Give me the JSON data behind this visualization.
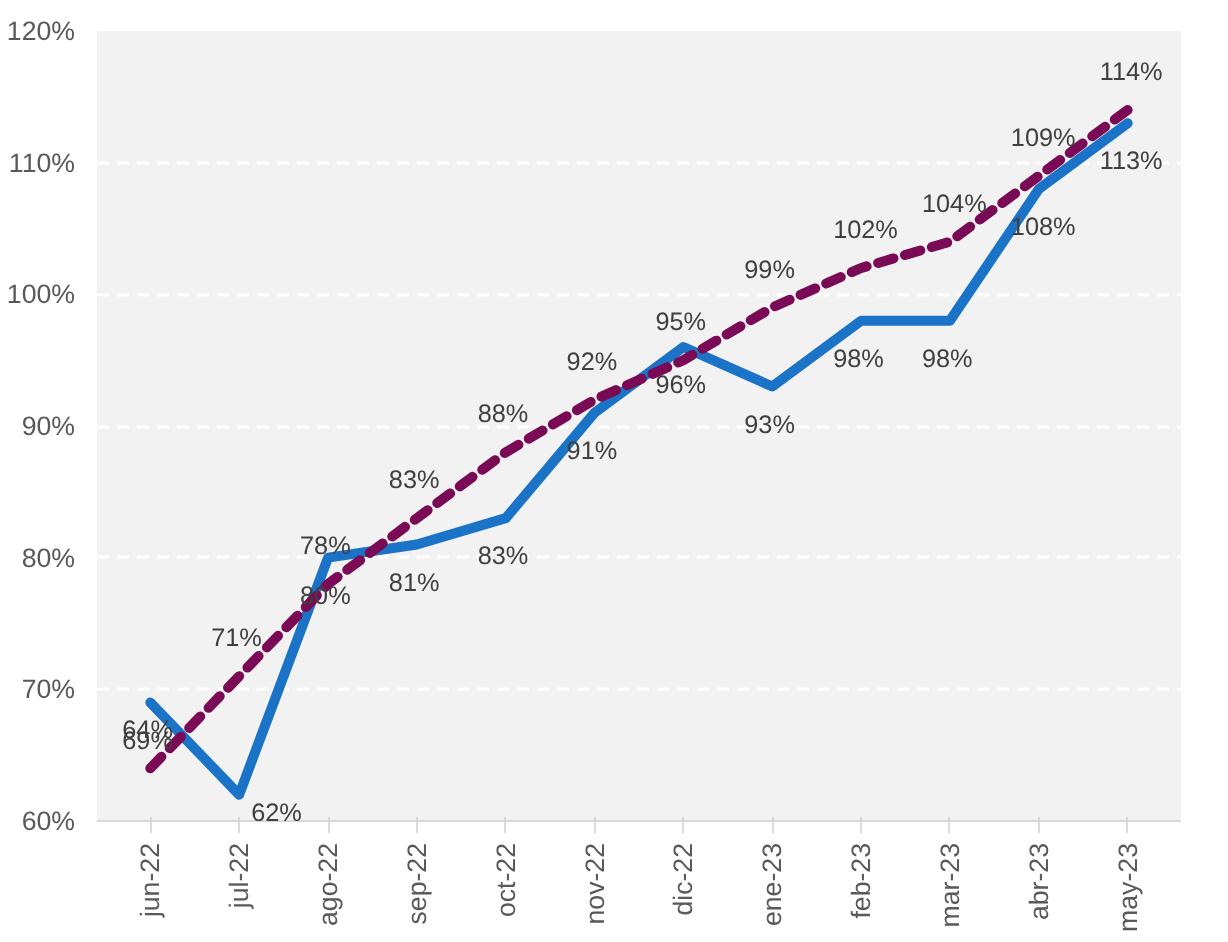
{
  "chart_data": {
    "type": "line",
    "categories": [
      "jun-22",
      "jul-22",
      "ago-22",
      "sep-22",
      "oct-22",
      "nov-22",
      "dic-22",
      "ene-23",
      "feb-23",
      "mar-23",
      "abr-23",
      "may-23"
    ],
    "series": [
      {
        "color": "#1a73c6",
        "values": [
          69,
          62,
          80,
          81,
          83,
          91,
          96,
          93,
          98,
          98,
          108,
          113
        ],
        "value_labels": [
          "69%",
          "62%",
          "80%",
          "81%",
          "83%",
          "91%",
          "96%",
          "93%",
          "98%",
          "98%",
          "108%",
          "113%"
        ],
        "line_style": "solid"
      },
      {
        "color": "#7a0a55",
        "values": [
          64,
          71,
          78,
          83,
          88,
          92,
          95,
          99,
          102,
          104,
          109,
          114
        ],
        "value_labels": [
          "64%",
          "71%",
          "78%",
          "83%",
          "88%",
          "92%",
          "95%",
          "99%",
          "102%",
          "104%",
          "109%",
          "114%"
        ],
        "line_style": "dashed"
      }
    ],
    "ylim": [
      60,
      120
    ],
    "yticks": [
      {
        "value": 60,
        "label": "60%"
      },
      {
        "value": 70,
        "label": "70%"
      },
      {
        "value": 80,
        "label": "80%"
      },
      {
        "value": 90,
        "label": "90%"
      },
      {
        "value": 100,
        "label": "100%"
      },
      {
        "value": 110,
        "label": "110%"
      },
      {
        "value": 120,
        "label": "120%"
      }
    ],
    "grid": "y",
    "marker": "none"
  }
}
